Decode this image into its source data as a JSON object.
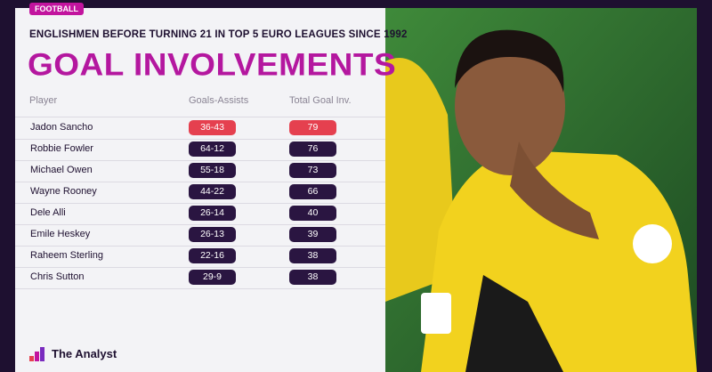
{
  "tag": "FOOTBALL",
  "subtitle": "ENGLISHMEN BEFORE TURNING 21 IN TOP 5 EURO LEAGUES SINCE 1992",
  "title": "GOAL INVOLVEMENTS",
  "table": {
    "headers": [
      "Player",
      "Goals-Assists",
      "Total Goal Inv."
    ],
    "rows": [
      [
        "Jadon Sancho",
        "36-43",
        79
      ],
      [
        "Robbie Fowler",
        "64-12",
        76
      ],
      [
        "Michael Owen",
        "55-18",
        73
      ],
      [
        "Wayne Rooney",
        "44-22",
        66
      ],
      [
        "Dele Alli",
        "26-14",
        40
      ],
      [
        "Emile Heskey",
        "26-13",
        39
      ],
      [
        "Raheem Sterling",
        "22-16",
        38
      ],
      [
        "Chris Sutton",
        "29-9",
        38
      ]
    ]
  },
  "brand": "The Analyst"
}
